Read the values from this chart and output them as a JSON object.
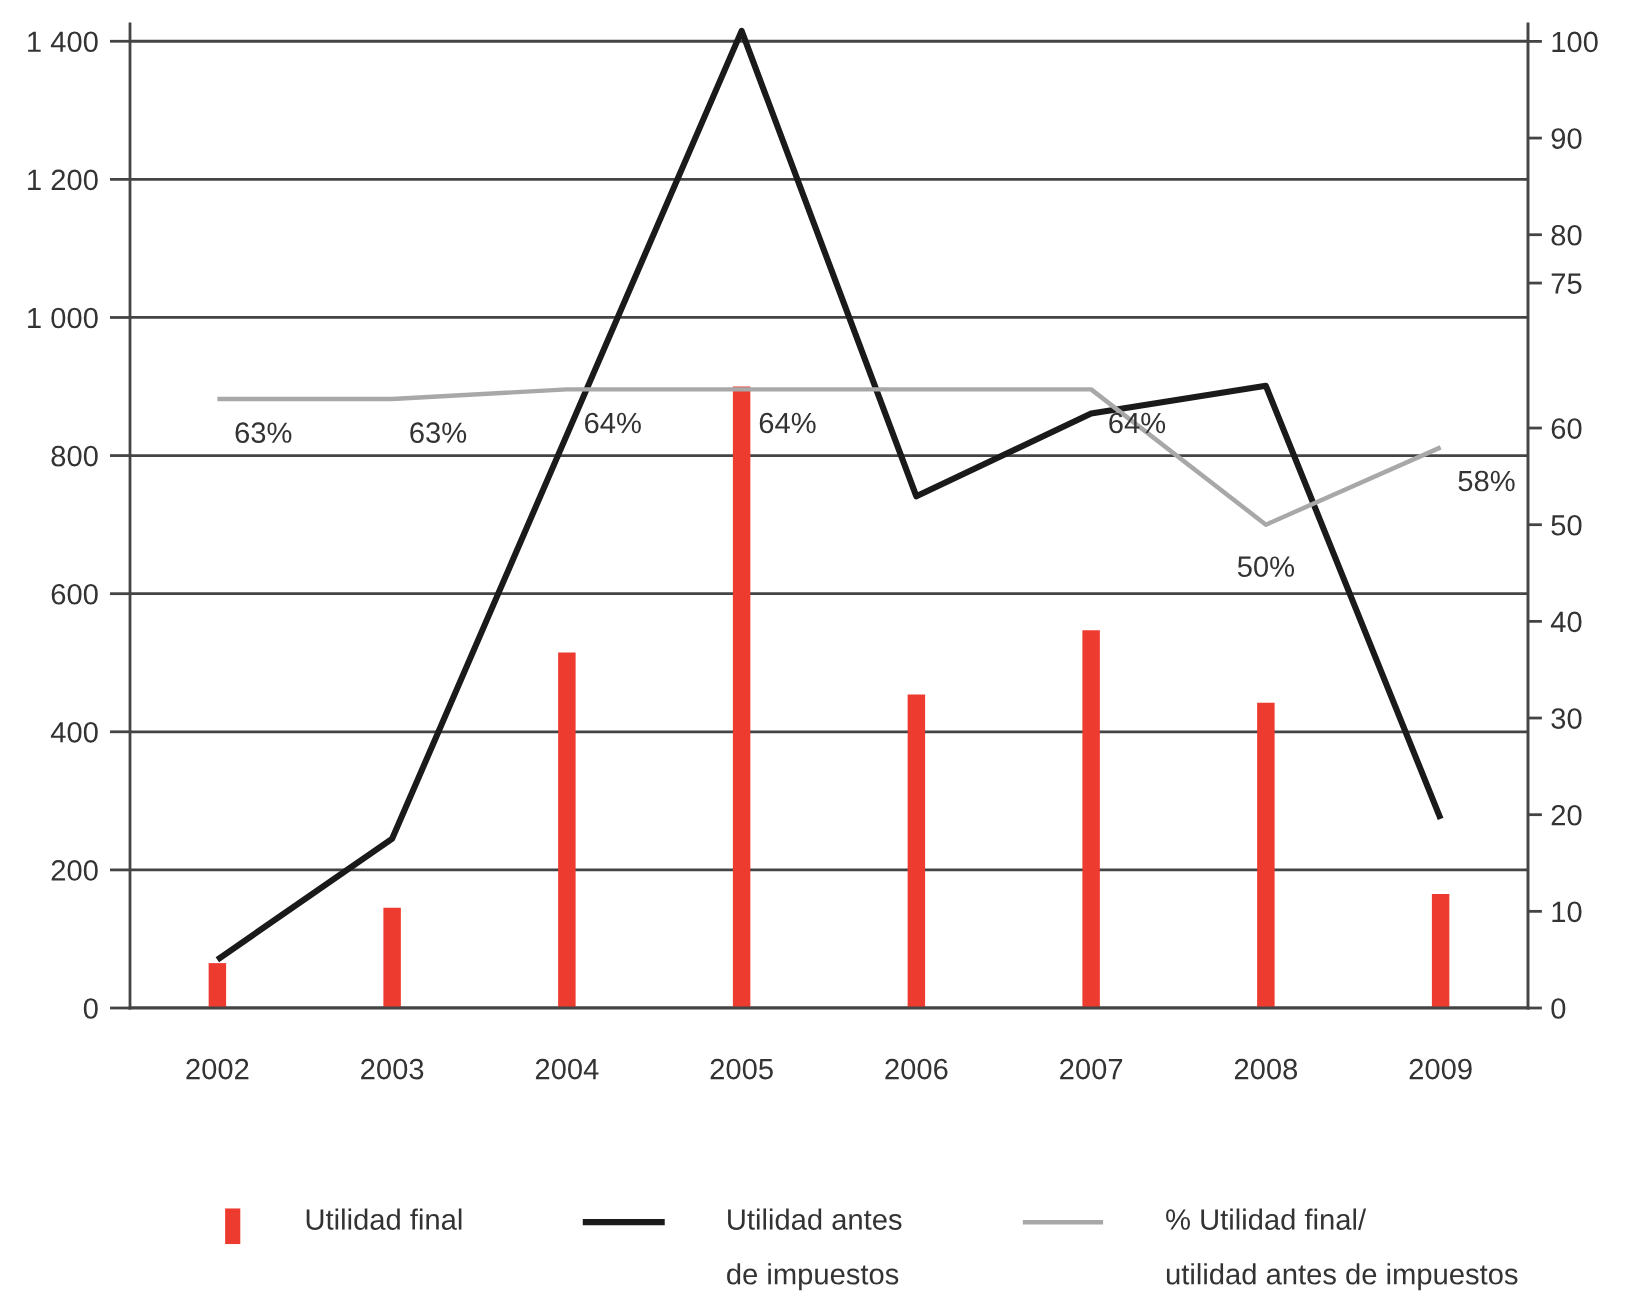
{
  "chart_data": {
    "type": "bar",
    "categories": [
      "2002",
      "2003",
      "2004",
      "2005",
      "2006",
      "2007",
      "2008",
      "2009"
    ],
    "series": [
      {
        "name": "Utilidad final",
        "color": "#ee3b2f",
        "values": [
          65,
          145,
          515,
          900,
          454,
          547,
          442,
          165
        ]
      },
      {
        "name": "Utilidad antes\nde impuestos",
        "type": "line",
        "color": "#1a1a1a",
        "values": [
          70,
          245,
          830,
          1415,
          741,
          861,
          901,
          274
        ]
      },
      {
        "name": "% Utilidad final/\nutilidad antes de impuestos",
        "type": "line",
        "axis": "y2",
        "color": "#a8a8a8",
        "values": [
          63,
          63,
          64,
          64,
          64,
          64,
          50,
          58
        ],
        "value_labels": [
          "63%",
          "63%",
          "64%",
          "64%",
          null,
          "64%",
          "50%",
          "58%"
        ]
      }
    ],
    "ylim": [
      0,
      1425
    ],
    "yticks": [
      0,
      200,
      400,
      600,
      800,
      {
        "value": 1000,
        "label": "1 000"
      },
      {
        "value": 1200,
        "label": "1 200"
      },
      {
        "value": 1400,
        "label": "1 400"
      }
    ],
    "y2lim": [
      0,
      101.8
    ],
    "y2ticks": [
      0,
      10,
      20,
      30,
      40,
      50,
      60,
      75,
      80,
      90,
      100
    ],
    "grid": "y",
    "legend": "bottom"
  }
}
